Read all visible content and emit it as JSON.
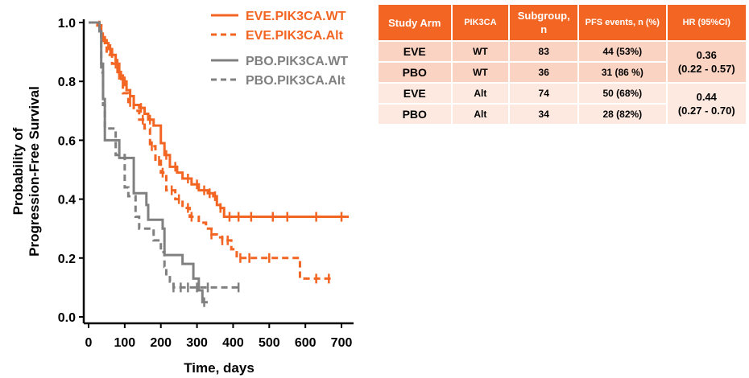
{
  "chart_data": {
    "type": "line",
    "subtype": "step",
    "xlabel": "Time, days",
    "ylabel_lines": [
      "Probability of",
      "Progression-Free Survival"
    ],
    "xlim": [
      0,
      720
    ],
    "ylim": [
      0,
      1.0
    ],
    "x_ticks": [
      0,
      100,
      200,
      300,
      400,
      500,
      600,
      700
    ],
    "y_ticks": [
      0.0,
      0.2,
      0.4,
      0.6,
      0.8,
      1.0
    ],
    "x_tick_labels": [
      "0",
      "100",
      "200",
      "300",
      "400",
      "500",
      "600",
      "700"
    ],
    "y_tick_labels": [
      "0.0",
      "0.2",
      "0.4",
      "0.6",
      "0.8",
      "1.0"
    ],
    "legend_position": "top-right",
    "series": [
      {
        "name": "EVE.PIK3CA.WT",
        "color": "#f26522",
        "dash": "solid",
        "steps": [
          [
            0,
            1.0
          ],
          [
            25,
            0.99
          ],
          [
            35,
            0.95
          ],
          [
            45,
            0.93
          ],
          [
            55,
            0.91
          ],
          [
            65,
            0.89
          ],
          [
            75,
            0.86
          ],
          [
            85,
            0.81
          ],
          [
            95,
            0.8
          ],
          [
            105,
            0.77
          ],
          [
            115,
            0.75
          ],
          [
            125,
            0.72
          ],
          [
            140,
            0.71
          ],
          [
            155,
            0.69
          ],
          [
            165,
            0.67
          ],
          [
            180,
            0.65
          ],
          [
            200,
            0.59
          ],
          [
            210,
            0.55
          ],
          [
            225,
            0.51
          ],
          [
            245,
            0.49
          ],
          [
            260,
            0.47
          ],
          [
            285,
            0.45
          ],
          [
            305,
            0.43
          ],
          [
            330,
            0.42
          ],
          [
            345,
            0.41
          ],
          [
            355,
            0.38
          ],
          [
            365,
            0.37
          ],
          [
            375,
            0.34
          ],
          [
            720,
            0.34
          ]
        ],
        "censor_x": [
          40,
          60,
          80,
          100,
          145,
          170,
          215,
          240,
          275,
          300,
          320,
          335,
          350,
          365,
          390,
          415,
          450,
          510,
          550,
          630,
          700
        ]
      },
      {
        "name": "EVE.PIK3CA.Alt",
        "color": "#f26522",
        "dash": "dashed",
        "steps": [
          [
            0,
            1.0
          ],
          [
            20,
            0.99
          ],
          [
            35,
            0.94
          ],
          [
            50,
            0.89
          ],
          [
            65,
            0.86
          ],
          [
            80,
            0.82
          ],
          [
            95,
            0.76
          ],
          [
            110,
            0.73
          ],
          [
            125,
            0.7
          ],
          [
            140,
            0.67
          ],
          [
            155,
            0.64
          ],
          [
            170,
            0.58
          ],
          [
            185,
            0.53
          ],
          [
            200,
            0.49
          ],
          [
            215,
            0.43
          ],
          [
            240,
            0.4
          ],
          [
            260,
            0.37
          ],
          [
            280,
            0.34
          ],
          [
            305,
            0.32
          ],
          [
            325,
            0.3
          ],
          [
            340,
            0.28
          ],
          [
            355,
            0.27
          ],
          [
            370,
            0.26
          ],
          [
            395,
            0.23
          ],
          [
            410,
            0.2
          ],
          [
            585,
            0.13
          ],
          [
            670,
            0.13
          ]
        ],
        "censor_x": [
          30,
          75,
          90,
          115,
          150,
          175,
          195,
          205,
          230,
          250,
          275,
          285,
          340,
          370,
          385,
          420,
          445,
          500,
          630,
          665
        ]
      },
      {
        "name": "PBO.PIK3CA.WT",
        "color": "#808080",
        "dash": "solid",
        "steps": [
          [
            0,
            1.0
          ],
          [
            30,
            0.97
          ],
          [
            35,
            0.86
          ],
          [
            40,
            0.74
          ],
          [
            45,
            0.6
          ],
          [
            85,
            0.54
          ],
          [
            125,
            0.42
          ],
          [
            160,
            0.38
          ],
          [
            165,
            0.33
          ],
          [
            205,
            0.3
          ],
          [
            210,
            0.21
          ],
          [
            260,
            0.18
          ],
          [
            290,
            0.13
          ],
          [
            305,
            0.09
          ],
          [
            315,
            0.05
          ],
          [
            330,
            0.05
          ]
        ],
        "censor_x": [
          320
        ]
      },
      {
        "name": "PBO.PIK3CA.Alt",
        "color": "#808080",
        "dash": "dashed",
        "steps": [
          [
            0,
            1.0
          ],
          [
            30,
            0.97
          ],
          [
            35,
            0.83
          ],
          [
            40,
            0.72
          ],
          [
            45,
            0.64
          ],
          [
            75,
            0.55
          ],
          [
            100,
            0.44
          ],
          [
            110,
            0.41
          ],
          [
            130,
            0.34
          ],
          [
            140,
            0.3
          ],
          [
            180,
            0.26
          ],
          [
            200,
            0.22
          ],
          [
            210,
            0.17
          ],
          [
            215,
            0.14
          ],
          [
            225,
            0.12
          ],
          [
            235,
            0.1
          ],
          [
            420,
            0.1
          ]
        ],
        "censor_x": [
          235,
          255,
          275,
          300,
          330,
          415
        ]
      }
    ]
  },
  "table": {
    "headers": [
      "Study Arm",
      "PIK3CA",
      "Subgroup, n",
      "PFS events, n (%)",
      "HR (95%CI)"
    ],
    "rows": [
      {
        "arm": "EVE",
        "pik3ca": "WT",
        "n": "83",
        "events": "44 (53%)"
      },
      {
        "arm": "PBO",
        "pik3ca": "WT",
        "n": "36",
        "events": "31 (86 %)"
      },
      {
        "arm": "EVE",
        "pik3ca": "Alt",
        "n": "74",
        "events": "50 (68%)"
      },
      {
        "arm": "PBO",
        "pik3ca": "Alt",
        "n": "34",
        "events": "28 (82%)"
      }
    ],
    "hr": [
      {
        "value": "0.36",
        "ci": "(0.22 - 0.57)"
      },
      {
        "value": "0.44",
        "ci": "(0.27 - 0.70)"
      }
    ],
    "header_color": "#f26522",
    "row_color_dark": "#fbd3c2",
    "row_color_light": "#fde9e0"
  }
}
